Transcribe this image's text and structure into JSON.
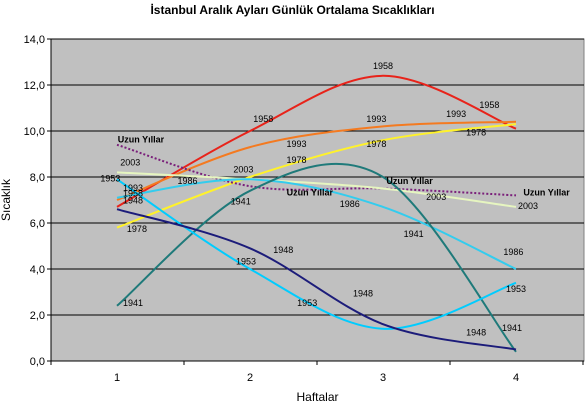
{
  "chart_data": {
    "type": "line",
    "title": "İstanbul Aralık Ayları Günlük Ortalama Sıcaklıkları",
    "xlabel": "Haftalar",
    "ylabel": "Sıcaklık",
    "x": [
      1,
      2,
      3,
      4
    ],
    "x_tick_labels": [
      "1",
      "2",
      "3",
      "4"
    ],
    "ylim": [
      0,
      14
    ],
    "y_ticks": [
      0,
      2,
      4,
      6,
      8,
      10,
      12,
      14
    ],
    "y_tick_labels": [
      "0,0",
      "2,0",
      "4,0",
      "6,0",
      "8,0",
      "10,0",
      "12,0",
      "14,0"
    ],
    "grid": true,
    "plot_background": "#c0c0c0",
    "series": [
      {
        "name": "1958",
        "color": "#e8231a",
        "values": [
          6.7,
          10.0,
          12.4,
          10.1
        ]
      },
      {
        "name": "1993",
        "color": "#f47a20",
        "values": [
          7.0,
          9.3,
          10.2,
          10.4
        ]
      },
      {
        "name": "1978",
        "color": "#fff22a",
        "values": [
          5.8,
          8.0,
          9.6,
          10.3
        ]
      },
      {
        "name": "Uzun Yıllar",
        "color": "#7a1f7a",
        "dashed": true,
        "values": [
          9.4,
          7.6,
          7.5,
          7.2
        ]
      },
      {
        "name": "2003",
        "color": "#e6f5c0",
        "values": [
          8.2,
          7.9,
          7.5,
          6.7
        ]
      },
      {
        "name": "1986",
        "color": "#33ccee",
        "values": [
          7.1,
          7.9,
          6.7,
          4.0
        ]
      },
      {
        "name": "1941",
        "color": "#1f7a7a",
        "values": [
          2.4,
          7.4,
          8.0,
          0.4
        ]
      },
      {
        "name": "1953",
        "color": "#00ccff",
        "values": [
          7.9,
          4.0,
          1.4,
          3.4
        ]
      },
      {
        "name": "1948",
        "color": "#1c1c7a",
        "values": [
          6.6,
          4.9,
          1.6,
          0.5
        ]
      }
    ],
    "point_labels": [
      {
        "series": "1958",
        "x": 2.1,
        "y": 10.4,
        "text": "1958"
      },
      {
        "series": "1958",
        "x": 3.0,
        "y": 12.7,
        "text": "1958"
      },
      {
        "series": "1958",
        "x": 3.8,
        "y": 11.0,
        "text": "1958"
      },
      {
        "series": "1993",
        "x": 2.35,
        "y": 9.3,
        "text": "1993"
      },
      {
        "series": "1993",
        "x": 2.95,
        "y": 10.4,
        "text": "1993"
      },
      {
        "series": "1993",
        "x": 3.55,
        "y": 10.6,
        "text": "1993"
      },
      {
        "series": "1978",
        "x": 1.15,
        "y": 5.6,
        "text": "1978"
      },
      {
        "series": "1978",
        "x": 2.35,
        "y": 8.6,
        "text": "1978"
      },
      {
        "series": "1978",
        "x": 2.95,
        "y": 9.3,
        "text": "1978"
      },
      {
        "series": "1978",
        "x": 3.7,
        "y": 9.8,
        "text": "1978"
      },
      {
        "series": "Uzun Yıllar",
        "x": 1.18,
        "y": 9.5,
        "text": "Uzun Yıllar"
      },
      {
        "series": "Uzun Yıllar",
        "x": 2.45,
        "y": 7.2,
        "text": "Uzun Yıllar"
      },
      {
        "series": "Uzun Yıllar",
        "x": 3.2,
        "y": 7.7,
        "text": "Uzun Yıllar"
      },
      {
        "series": "Uzun Yıllar",
        "x": 4.23,
        "y": 7.2,
        "text": "Uzun Yıllar"
      },
      {
        "series": "2003",
        "x": 1.1,
        "y": 8.5,
        "text": "2003"
      },
      {
        "series": "2003",
        "x": 1.95,
        "y": 8.2,
        "text": "2003"
      },
      {
        "series": "2003",
        "x": 3.4,
        "y": 7.0,
        "text": "2003"
      },
      {
        "series": "2003",
        "x": 4.09,
        "y": 6.6,
        "text": "2003"
      },
      {
        "series": "1986",
        "x": 1.53,
        "y": 7.7,
        "text": "1986"
      },
      {
        "series": "1986",
        "x": 2.75,
        "y": 6.7,
        "text": "1986"
      },
      {
        "series": "1986",
        "x": 3.98,
        "y": 4.6,
        "text": "1986"
      },
      {
        "series": "1941",
        "x": 1.12,
        "y": 2.4,
        "text": "1941"
      },
      {
        "series": "1941",
        "x": 1.93,
        "y": 6.8,
        "text": "1941"
      },
      {
        "series": "1941",
        "x": 3.23,
        "y": 5.4,
        "text": "1941"
      },
      {
        "series": "1941",
        "x": 3.97,
        "y": 1.3,
        "text": "1941"
      },
      {
        "series": "1953",
        "x": 0.95,
        "y": 7.8,
        "text": "1953"
      },
      {
        "series": "1953",
        "x": 1.97,
        "y": 4.2,
        "text": "1953"
      },
      {
        "series": "1953",
        "x": 2.43,
        "y": 2.4,
        "text": "1953"
      },
      {
        "series": "1953",
        "x": 4.0,
        "y": 3.0,
        "text": "1953"
      },
      {
        "series": "1948",
        "x": 1.12,
        "y": 6.85,
        "text": "1948"
      },
      {
        "series": "1948",
        "x": 1.12,
        "y": 7.15,
        "text": "1958"
      },
      {
        "series": "1948",
        "x": 1.12,
        "y": 7.4,
        "text": "1993"
      },
      {
        "series": "1948",
        "x": 2.25,
        "y": 4.7,
        "text": "1948"
      },
      {
        "series": "1948",
        "x": 2.85,
        "y": 2.8,
        "text": "1948"
      },
      {
        "series": "1948",
        "x": 3.7,
        "y": 1.1,
        "text": "1948"
      }
    ]
  }
}
